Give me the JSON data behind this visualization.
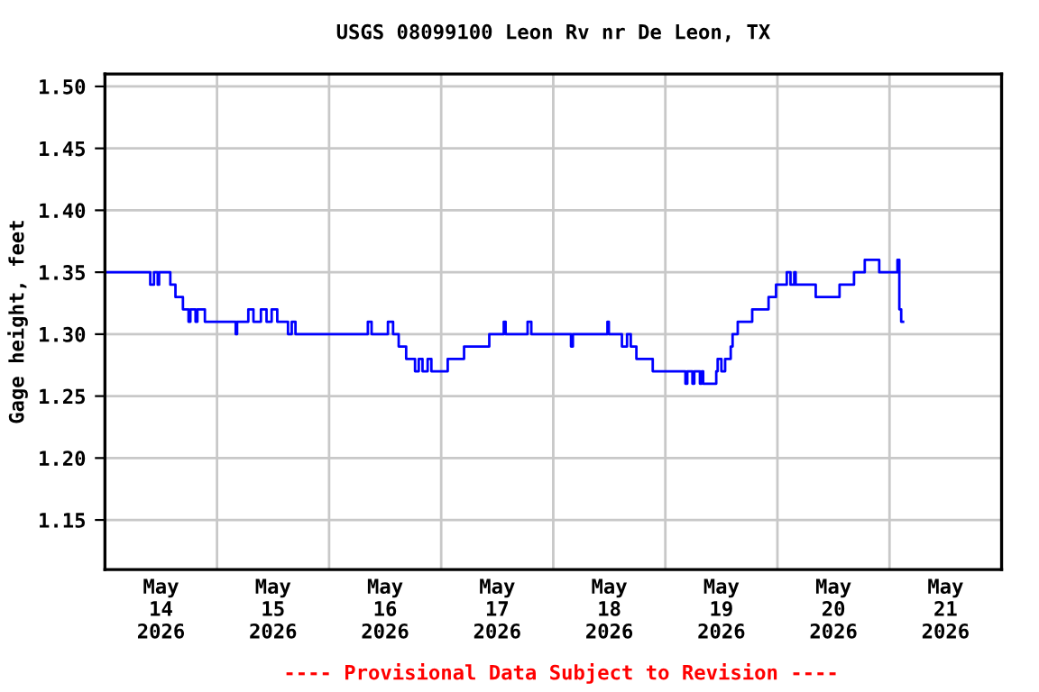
{
  "chart_data": {
    "type": "step",
    "title": "USGS 08099100 Leon Rv nr De Leon, TX",
    "ylabel": "Gage height, feet",
    "annotations": [
      "---- Provisional Data Subject to Revision ----"
    ],
    "xlim": [
      "2026-05-14T00:00",
      "2026-05-22T00:00"
    ],
    "ylim": [
      1.11,
      1.51
    ],
    "yticks": [
      {
        "value": 1.15,
        "label": "1.15"
      },
      {
        "value": 1.2,
        "label": "1.20"
      },
      {
        "value": 1.25,
        "label": "1.25"
      },
      {
        "value": 1.3,
        "label": "1.30"
      },
      {
        "value": 1.35,
        "label": "1.35"
      },
      {
        "value": 1.4,
        "label": "1.40"
      },
      {
        "value": 1.45,
        "label": "1.45"
      },
      {
        "value": 1.5,
        "label": "1.50"
      }
    ],
    "xticks": [
      {
        "value": "2026-05-14T12:00",
        "label": "May\n14\n2026"
      },
      {
        "value": "2026-05-15T00:00",
        "label": null
      },
      {
        "value": "2026-05-15T12:00",
        "label": "May\n15\n2026"
      },
      {
        "value": "2026-05-16T00:00",
        "label": null
      },
      {
        "value": "2026-05-16T12:00",
        "label": "May\n16\n2026"
      },
      {
        "value": "2026-05-17T00:00",
        "label": null
      },
      {
        "value": "2026-05-17T12:00",
        "label": "May\n17\n2026"
      },
      {
        "value": "2026-05-18T00:00",
        "label": null
      },
      {
        "value": "2026-05-18T12:00",
        "label": "May\n18\n2026"
      },
      {
        "value": "2026-05-19T00:00",
        "label": null
      },
      {
        "value": "2026-05-19T12:00",
        "label": "May\n19\n2026"
      },
      {
        "value": "2026-05-20T00:00",
        "label": null
      },
      {
        "value": "2026-05-20T12:00",
        "label": "May\n20\n2026"
      },
      {
        "value": "2026-05-21T00:00",
        "label": null
      },
      {
        "value": "2026-05-21T12:00",
        "label": "May\n21\n2026"
      }
    ],
    "grid": true,
    "legend": false,
    "series": [
      {
        "color": "#0000ff",
        "x": [
          "2026-05-14T00:00",
          "2026-05-14T09:42",
          "2026-05-14T10:30",
          "2026-05-14T11:18",
          "2026-05-14T11:36",
          "2026-05-14T14:00",
          "2026-05-14T15:06",
          "2026-05-14T16:42",
          "2026-05-14T17:54",
          "2026-05-14T18:18",
          "2026-05-14T19:24",
          "2026-05-14T19:48",
          "2026-05-14T21:24",
          "2026-05-15T04:00",
          "2026-05-15T04:18",
          "2026-05-15T06:42",
          "2026-05-15T07:48",
          "2026-05-15T09:24",
          "2026-05-15T10:36",
          "2026-05-15T11:42",
          "2026-05-15T12:54",
          "2026-05-15T15:12",
          "2026-05-15T16:00",
          "2026-05-15T16:48",
          "2026-05-16T08:18",
          "2026-05-16T09:06",
          "2026-05-16T12:36",
          "2026-05-16T13:42",
          "2026-05-16T14:54",
          "2026-05-16T16:30",
          "2026-05-16T18:24",
          "2026-05-16T19:12",
          "2026-05-16T20:00",
          "2026-05-16T21:06",
          "2026-05-16T21:54",
          "2026-05-17T01:24",
          "2026-05-17T04:54",
          "2026-05-17T10:18",
          "2026-05-17T13:24",
          "2026-05-17T13:48",
          "2026-05-17T18:30",
          "2026-05-17T19:18",
          "2026-05-18T03:48",
          "2026-05-18T04:12",
          "2026-05-18T11:36",
          "2026-05-18T11:54",
          "2026-05-18T14:42",
          "2026-05-18T15:48",
          "2026-05-18T16:36",
          "2026-05-18T17:48",
          "2026-05-18T21:18",
          "2026-05-19T04:18",
          "2026-05-19T04:42",
          "2026-05-19T05:48",
          "2026-05-19T06:12",
          "2026-05-19T07:24",
          "2026-05-19T07:48",
          "2026-05-19T08:06",
          "2026-05-19T10:54",
          "2026-05-19T11:12",
          "2026-05-19T12:00",
          "2026-05-19T12:48",
          "2026-05-19T14:00",
          "2026-05-19T14:24",
          "2026-05-19T15:30",
          "2026-05-19T18:36",
          "2026-05-19T22:06",
          "2026-05-19T23:42",
          "2026-05-20T02:00",
          "2026-05-20T02:48",
          "2026-05-20T03:36",
          "2026-05-20T03:54",
          "2026-05-20T08:12",
          "2026-05-20T13:18",
          "2026-05-20T16:24",
          "2026-05-20T18:42",
          "2026-05-20T21:48",
          "2026-05-21T01:42",
          "2026-05-21T02:06",
          "2026-05-21T02:30",
          "2026-05-21T02:54"
        ],
        "values": [
          1.35,
          1.34,
          1.35,
          1.34,
          1.35,
          1.34,
          1.33,
          1.32,
          1.31,
          1.32,
          1.31,
          1.32,
          1.31,
          1.3,
          1.31,
          1.32,
          1.31,
          1.32,
          1.31,
          1.32,
          1.31,
          1.3,
          1.31,
          1.3,
          1.31,
          1.3,
          1.31,
          1.3,
          1.29,
          1.28,
          1.27,
          1.28,
          1.27,
          1.28,
          1.27,
          1.28,
          1.29,
          1.3,
          1.31,
          1.3,
          1.31,
          1.3,
          1.29,
          1.3,
          1.31,
          1.3,
          1.29,
          1.3,
          1.29,
          1.28,
          1.27,
          1.26,
          1.27,
          1.26,
          1.27,
          1.26,
          1.27,
          1.26,
          1.27,
          1.28,
          1.27,
          1.28,
          1.29,
          1.3,
          1.31,
          1.32,
          1.33,
          1.34,
          1.35,
          1.34,
          1.35,
          1.34,
          1.33,
          1.34,
          1.35,
          1.36,
          1.35,
          1.36,
          1.32,
          1.31,
          1.31
        ]
      }
    ]
  }
}
